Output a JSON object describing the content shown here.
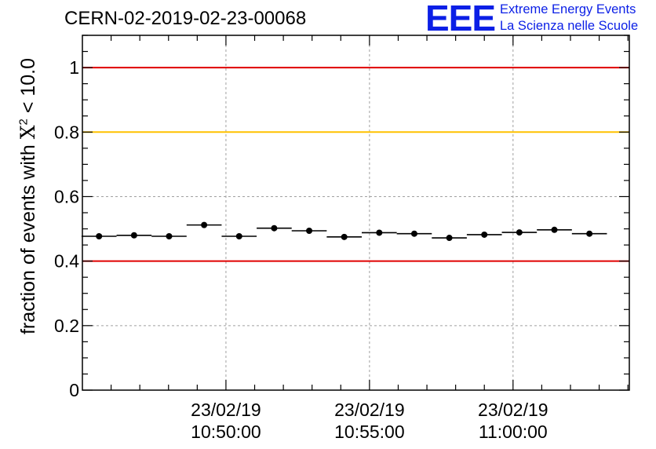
{
  "header": {
    "run_id": "CERN-02-2019-02-23-00068"
  },
  "logo": {
    "mark": "EEE",
    "line1": "Extreme Energy Events",
    "line2": "La Scienza nelle Scuole",
    "color": "#0b1fe6"
  },
  "chart_data": {
    "type": "scatter",
    "title": "CERN-02-2019-02-23-00068",
    "xlabel": "",
    "ylabel": {
      "prefix": "fraction of events with ",
      "symbol": "X",
      "superscript": "2",
      "suffix": " < 10.0"
    },
    "x_unit": "minutes after 10:45:00 on 23/02/19",
    "xlim": [
      0,
      19.05
    ],
    "ylim": [
      0,
      1.1
    ],
    "y_ticks": [
      0,
      0.2,
      0.4,
      0.6,
      0.8,
      1
    ],
    "y_tick_labels": [
      "0",
      "0.2",
      "0.4",
      "0.6",
      "0.8",
      "1"
    ],
    "x_ticks": [
      5,
      10,
      15
    ],
    "x_tick_labels": [
      {
        "date": "23/02/19",
        "time": "10:50:00"
      },
      {
        "date": "23/02/19",
        "time": "10:55:00"
      },
      {
        "date": "23/02/19",
        "time": "11:00:00"
      }
    ],
    "grid": true,
    "bin_halfwidth": 0.61,
    "points": [
      {
        "x": 0.58,
        "y": 0.477
      },
      {
        "x": 1.8,
        "y": 0.48
      },
      {
        "x": 3.02,
        "y": 0.477
      },
      {
        "x": 4.24,
        "y": 0.512
      },
      {
        "x": 5.46,
        "y": 0.477
      },
      {
        "x": 6.68,
        "y": 0.502
      },
      {
        "x": 7.9,
        "y": 0.494
      },
      {
        "x": 9.12,
        "y": 0.475
      },
      {
        "x": 10.34,
        "y": 0.488
      },
      {
        "x": 11.56,
        "y": 0.485
      },
      {
        "x": 12.78,
        "y": 0.472
      },
      {
        "x": 14.0,
        "y": 0.482
      },
      {
        "x": 15.22,
        "y": 0.489
      },
      {
        "x": 16.44,
        "y": 0.497
      },
      {
        "x": 17.66,
        "y": 0.485
      }
    ],
    "reference_lines": [
      {
        "y": 1.0,
        "color": "#e00000",
        "name": "upper-limit"
      },
      {
        "y": 0.8,
        "color": "#ffc200",
        "name": "warning-level"
      },
      {
        "y": 0.4,
        "color": "#e00000",
        "name": "lower-limit"
      }
    ]
  }
}
